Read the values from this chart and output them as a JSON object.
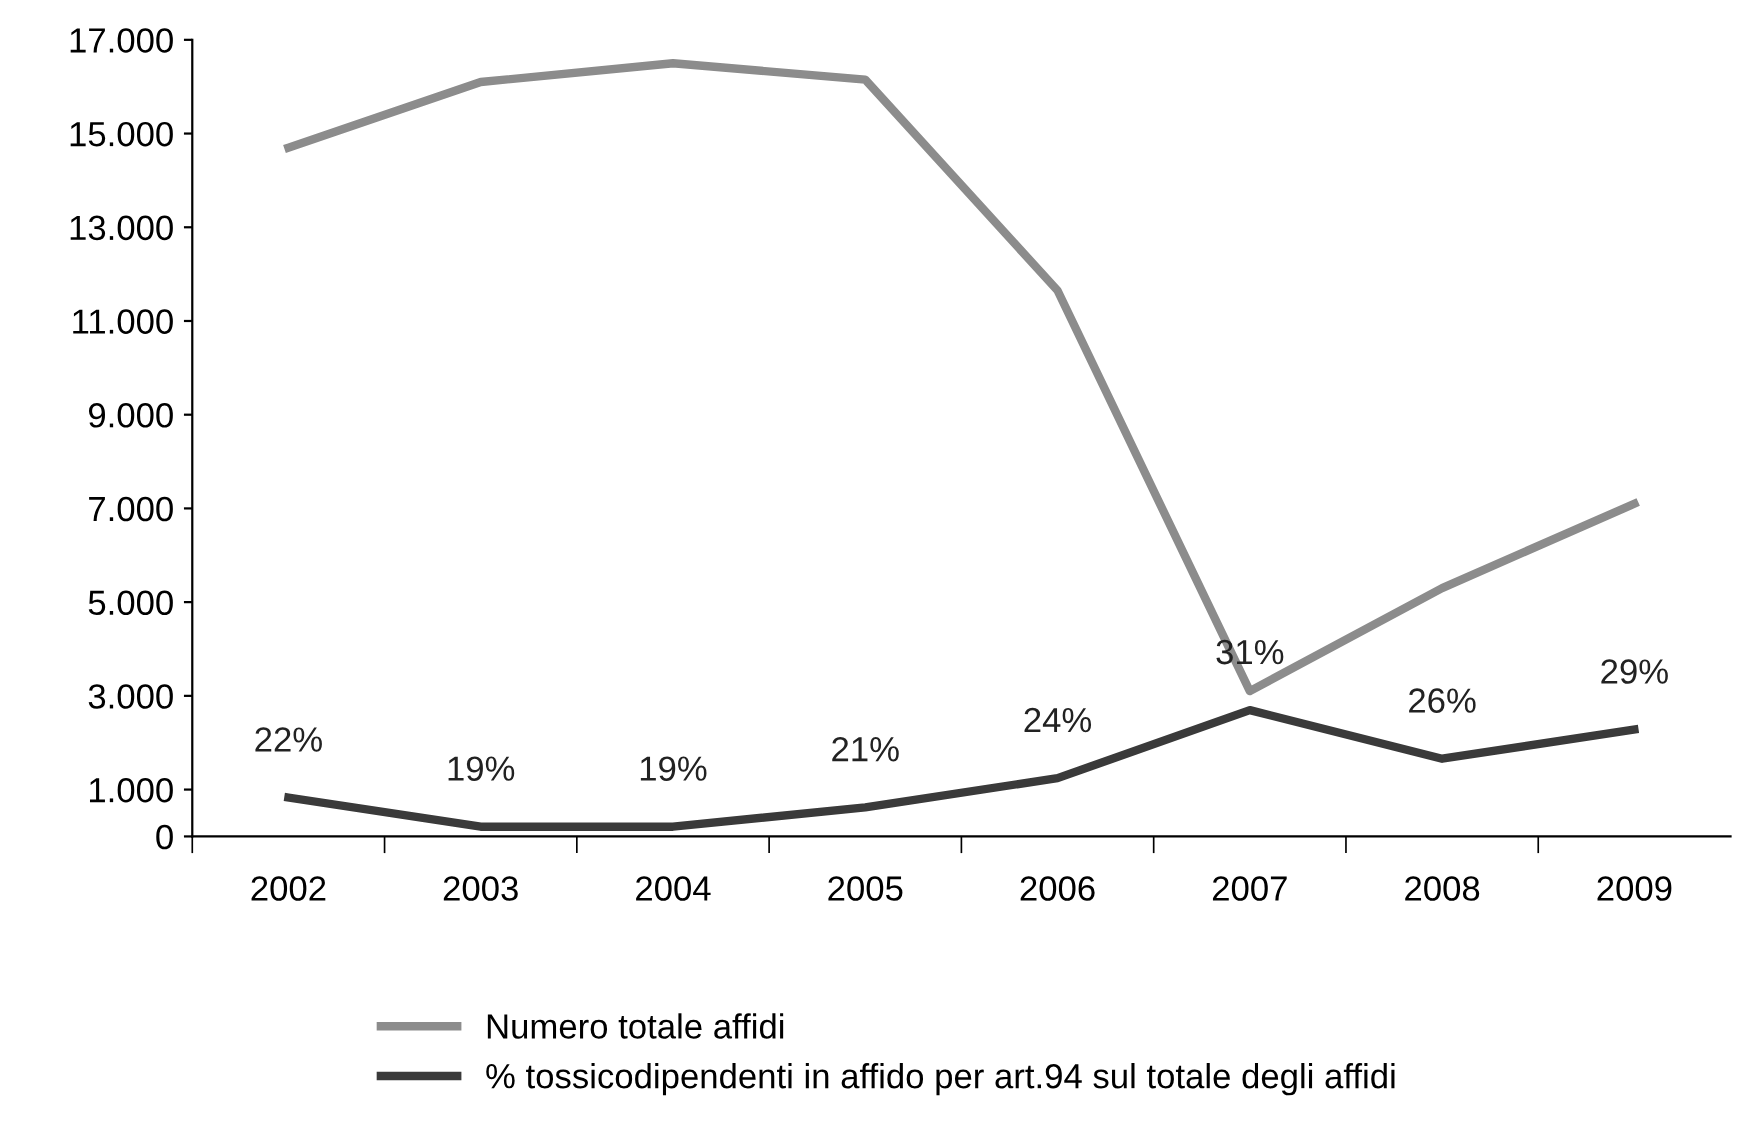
{
  "chart_data": {
    "type": "line",
    "categories": [
      "2002",
      "2003",
      "2004",
      "2005",
      "2006",
      "2007",
      "2008",
      "2009"
    ],
    "series": [
      {
        "name": "Numero totale affidi",
        "color": "#8c8c8c",
        "values": [
          14700,
          16100,
          16500,
          16150,
          11650,
          3100,
          5300,
          7100
        ]
      },
      {
        "name": "% tossicodipendenti in affido per art.94 sul totale degli affidi",
        "color": "#3a3a3a",
        "axis": "y2",
        "values": [
          22,
          19,
          19,
          21,
          24,
          31,
          26,
          29
        ],
        "value_labels": [
          "22%",
          "19%",
          "19%",
          "21%",
          "24%",
          "31%",
          "26%",
          "29%"
        ]
      }
    ],
    "ylim": [
      0,
      17000
    ],
    "yticks": [
      0,
      {
        "value": 1000,
        "label": "1.000"
      },
      {
        "value": 3000,
        "label": "3.000"
      },
      {
        "value": 5000,
        "label": "5.000"
      },
      {
        "value": 7000,
        "label": "7.000"
      },
      {
        "value": 9000,
        "label": "9.000"
      },
      {
        "value": 11000,
        "label": "11.000"
      },
      {
        "value": 13000,
        "label": "13.000"
      },
      {
        "value": 15000,
        "label": "15.000"
      },
      {
        "value": 17000,
        "label": "17.000"
      }
    ],
    "y2lim": [
      18,
      100
    ],
    "grid": false,
    "legend": "bottom",
    "marker": "none",
    "line_style": "solid"
  }
}
